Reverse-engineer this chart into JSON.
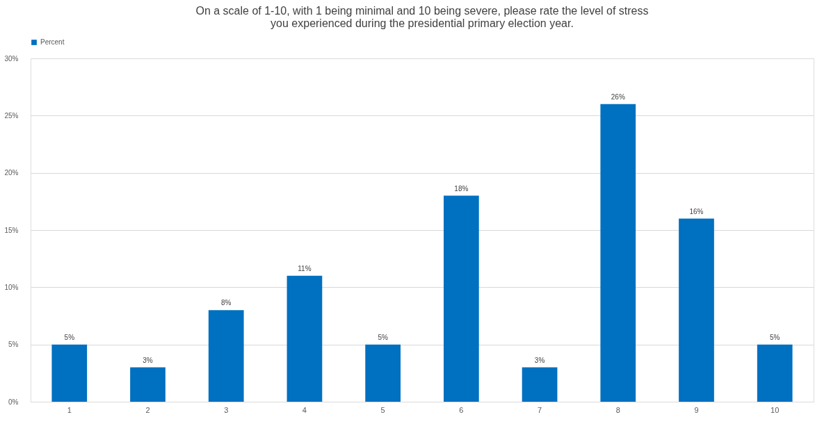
{
  "chart_data": {
    "type": "bar",
    "title": "On a scale of 1-10, with 1 being minimal and 10 being severe, please rate the level of stress you experienced during the presidential primary election year.",
    "categories": [
      "1",
      "2",
      "3",
      "4",
      "5",
      "6",
      "7",
      "8",
      "9",
      "10"
    ],
    "series": [
      {
        "name": "Percent",
        "color": "#0070c0",
        "values": [
          5,
          3,
          8,
          11,
          5,
          18,
          3,
          26,
          16,
          5
        ],
        "value_labels": [
          "5%",
          "3%",
          "8%",
          "11%",
          "5%",
          "18%",
          "3%",
          "26%",
          "16%",
          "5%"
        ]
      }
    ],
    "ylim": [
      0,
      30
    ],
    "yticks": [
      {
        "value": 0,
        "label": "0%"
      },
      {
        "value": 5,
        "label": "5%"
      },
      {
        "value": 10,
        "label": "10%"
      },
      {
        "value": 15,
        "label": "15%"
      },
      {
        "value": 20,
        "label": "20%"
      },
      {
        "value": 25,
        "label": "25%"
      },
      {
        "value": 30,
        "label": "30%"
      }
    ],
    "grid": "y",
    "legend": "top"
  }
}
